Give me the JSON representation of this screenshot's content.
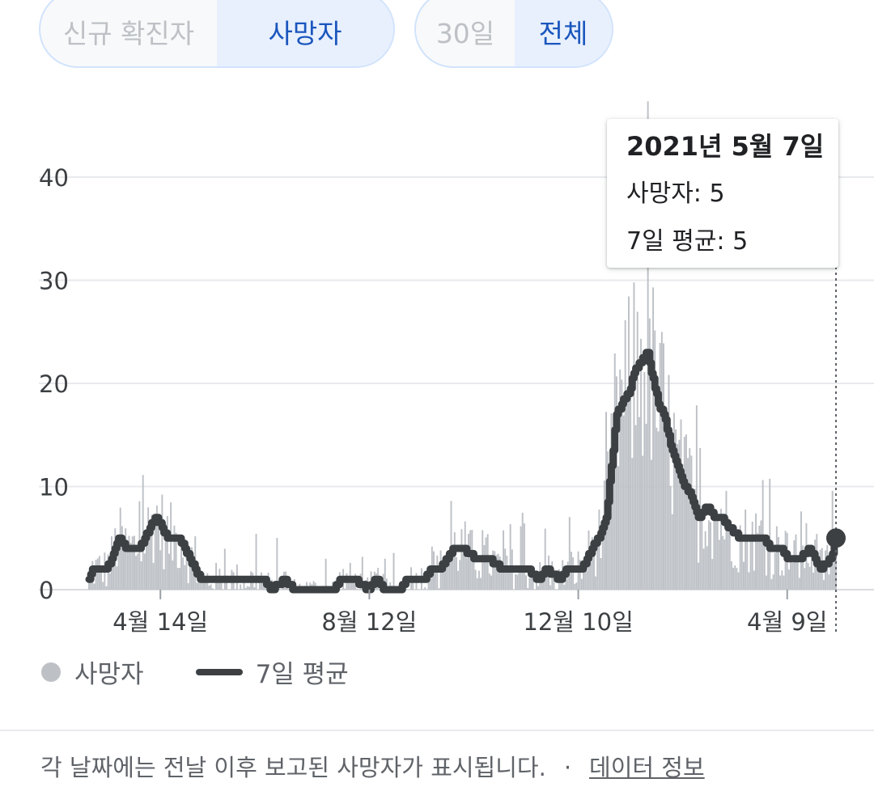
{
  "toggles": {
    "metric": {
      "new_cases": "신규 확진자",
      "deaths": "사망자",
      "selected": "deaths"
    },
    "range": {
      "days30": "30일",
      "all": "전체",
      "selected": "all"
    }
  },
  "tooltip": {
    "date": "2021년 5월 7일",
    "deaths_row": "사망자: 5",
    "avg_row": "7일 평균: 5"
  },
  "legend": {
    "deaths": "사망자",
    "avg": "7일 평균"
  },
  "footer": {
    "note": "각 날짜에는 전날 이후 보고된 사망자가 표시됩니다.",
    "separator": "·",
    "link": "데이터 정보"
  },
  "colors": {
    "bars": "#bdc1c6",
    "avg_line": "#3c4043",
    "accent": "#1a56bd",
    "grid": "#e8eaed"
  },
  "chart_data": {
    "type": "bar",
    "x_unit": "days since 2020-03-04",
    "x_range": [
      0,
      429
    ],
    "ylim": [
      0,
      40
    ],
    "yticks": [
      0,
      10,
      20,
      30,
      40
    ],
    "xticks": [
      {
        "day": 41,
        "label": "4월 14일"
      },
      {
        "day": 161,
        "label": "8월 12일"
      },
      {
        "day": 281,
        "label": "12월 10일"
      },
      {
        "day": 401,
        "label": "4월 9일"
      }
    ],
    "series": [
      {
        "name": "7일 평균",
        "type": "line",
        "points": [
          [
            0,
            1
          ],
          [
            2,
            2
          ],
          [
            10,
            2
          ],
          [
            13,
            3
          ],
          [
            15,
            4
          ],
          [
            17,
            5
          ],
          [
            21,
            4
          ],
          [
            26,
            4
          ],
          [
            29,
            4
          ],
          [
            32,
            5
          ],
          [
            35,
            6
          ],
          [
            38,
            7
          ],
          [
            42,
            6
          ],
          [
            45,
            5
          ],
          [
            52,
            5
          ],
          [
            55,
            4
          ],
          [
            58,
            3
          ],
          [
            61,
            2
          ],
          [
            64,
            1
          ],
          [
            75,
            1
          ],
          [
            90,
            1
          ],
          [
            100,
            1
          ],
          [
            105,
            0
          ],
          [
            112,
            1
          ],
          [
            118,
            0
          ],
          [
            128,
            0
          ],
          [
            140,
            0
          ],
          [
            145,
            1
          ],
          [
            152,
            1
          ],
          [
            160,
            0
          ],
          [
            165,
            1
          ],
          [
            170,
            0
          ],
          [
            178,
            0
          ],
          [
            183,
            1
          ],
          [
            192,
            1
          ],
          [
            197,
            2
          ],
          [
            202,
            2
          ],
          [
            205,
            3
          ],
          [
            210,
            4
          ],
          [
            215,
            4
          ],
          [
            222,
            3
          ],
          [
            230,
            3
          ],
          [
            237,
            2
          ],
          [
            245,
            2
          ],
          [
            252,
            2
          ],
          [
            258,
            1
          ],
          [
            263,
            2
          ],
          [
            270,
            1
          ],
          [
            275,
            2
          ],
          [
            283,
            2
          ],
          [
            289,
            4
          ],
          [
            293,
            5
          ],
          [
            297,
            7
          ],
          [
            300,
            12
          ],
          [
            303,
            17
          ],
          [
            306,
            18
          ],
          [
            310,
            19
          ],
          [
            313,
            21
          ],
          [
            317,
            22
          ],
          [
            321,
            23
          ],
          [
            323,
            21
          ],
          [
            327,
            18
          ],
          [
            330,
            17
          ],
          [
            334,
            14
          ],
          [
            338,
            12
          ],
          [
            342,
            10
          ],
          [
            346,
            9
          ],
          [
            350,
            7
          ],
          [
            355,
            8
          ],
          [
            359,
            7
          ],
          [
            363,
            7
          ],
          [
            368,
            6
          ],
          [
            374,
            5
          ],
          [
            380,
            5
          ],
          [
            387,
            5
          ],
          [
            392,
            4
          ],
          [
            397,
            4
          ],
          [
            402,
            3
          ],
          [
            408,
            3
          ],
          [
            414,
            4
          ],
          [
            420,
            2
          ],
          [
            426,
            3
          ],
          [
            429,
            5
          ]
        ]
      }
    ],
    "bars_note": "daily deaths, same shape as 7-day average with day-to-day noise; selected day value 5",
    "selected": {
      "day": 429,
      "value": 5
    }
  }
}
